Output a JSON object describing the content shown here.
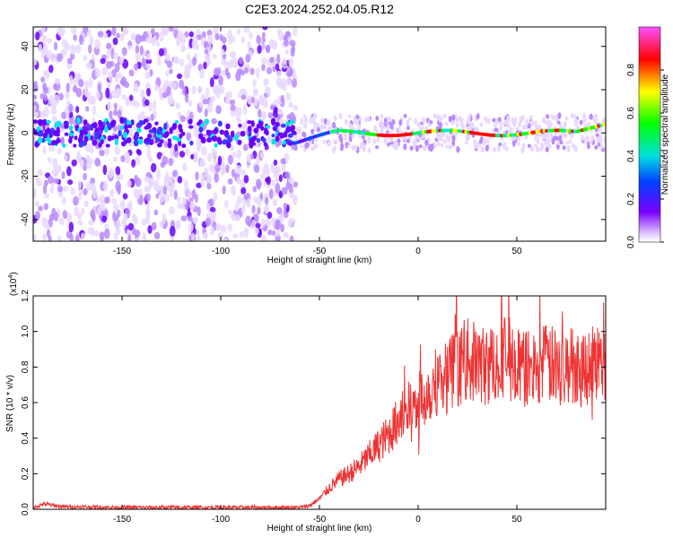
{
  "title": "C2E3.2024.252.04.05.R12",
  "chart_data": [
    {
      "type": "heatmap",
      "xlabel": "Height of straight line (km)",
      "ylabel": "Frequency (Hz)",
      "xlim": [
        -195,
        95
      ],
      "ylim": [
        -50,
        49
      ],
      "xticks": [
        -150,
        -100,
        -50,
        0,
        50
      ],
      "yticks": [
        -40,
        -20,
        0,
        20,
        40
      ],
      "colorbar": {
        "label": "Normalized spectral amplitude",
        "range": [
          0.0,
          1.0
        ],
        "ticks": [
          0.0,
          0.2,
          0.4,
          0.6,
          0.8
        ],
        "colors": [
          "#e9d8ff",
          "#6a00ff",
          "#0050ff",
          "#00e5e5",
          "#00ff00",
          "#ffff00",
          "#ff0000",
          "#ff60ff"
        ]
      },
      "features": {
        "noise_region_x": [
          -195,
          -62
        ],
        "signal_line_x": [
          -62,
          95
        ],
        "signal_line_freq_hz": 0
      }
    },
    {
      "type": "line",
      "xlabel": "Height of straight line (km)",
      "ylabel": "SNR (10 * v/v)",
      "y_scale_label": "(x10",
      "y_scale_exponent": "4",
      "xlim": [
        -195,
        95
      ],
      "ylim": [
        0.0,
        1.2
      ],
      "xticks": [
        -150,
        -100,
        -50,
        0,
        50
      ],
      "yticks": [
        0.0,
        0.2,
        0.4,
        0.6,
        0.8,
        1.0,
        1.2
      ],
      "series_color": "#ee3333",
      "envelope": {
        "x": [
          -195,
          -190,
          -180,
          -150,
          -100,
          -60,
          -55,
          -50,
          -45,
          -40,
          -35,
          -30,
          -25,
          -20,
          -15,
          -10,
          -5,
          0,
          5,
          10,
          15,
          20,
          25,
          30,
          35,
          40,
          45,
          50,
          55,
          60,
          65,
          70,
          75,
          80,
          85,
          90,
          95
        ],
        "y": [
          0.01,
          0.03,
          0.015,
          0.01,
          0.01,
          0.01,
          0.02,
          0.06,
          0.12,
          0.17,
          0.2,
          0.24,
          0.3,
          0.36,
          0.42,
          0.5,
          0.56,
          0.6,
          0.66,
          0.73,
          0.76,
          0.8,
          0.84,
          0.82,
          0.8,
          0.84,
          0.88,
          0.8,
          0.79,
          0.8,
          0.82,
          0.8,
          0.8,
          0.82,
          0.8,
          0.84,
          0.8
        ]
      }
    }
  ]
}
